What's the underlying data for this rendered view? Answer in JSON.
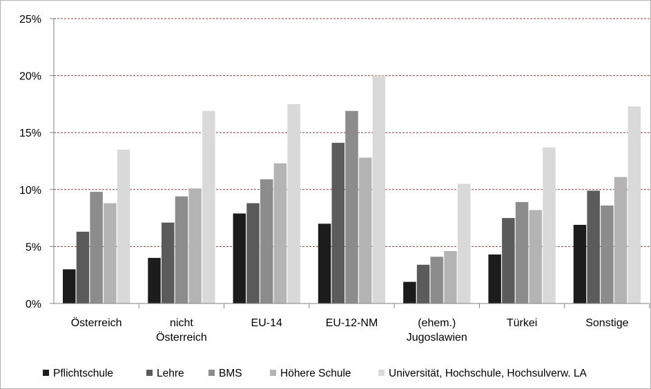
{
  "chart_data": {
    "type": "bar",
    "title": "",
    "xlabel": "",
    "ylabel": "",
    "ylim": [
      0,
      25
    ],
    "y_tick_format": "percent",
    "y_ticks": [
      "0%",
      "5%",
      "10%",
      "15%",
      "20%",
      "25%"
    ],
    "grid": "horizontal dashed",
    "legend_position": "bottom",
    "categories": [
      "Österreich",
      "nicht\nÖsterreich",
      "EU-14",
      "EU-12-NM",
      "(ehem.)\nJugoslawien",
      "Türkei",
      "Sonstige"
    ],
    "series": [
      {
        "name": "Pflichtschule",
        "color": "#1c1c1c",
        "values": [
          3.0,
          4.0,
          7.9,
          7.0,
          1.9,
          4.3,
          6.9
        ]
      },
      {
        "name": "Lehre",
        "color": "#5b5b5b",
        "values": [
          6.3,
          7.1,
          8.8,
          14.1,
          3.4,
          7.5,
          9.9
        ]
      },
      {
        "name": "BMS",
        "color": "#8c8c8c",
        "values": [
          9.8,
          9.4,
          10.9,
          16.9,
          4.1,
          8.9,
          8.6
        ]
      },
      {
        "name": "Höhere Schule",
        "color": "#b4b4b4",
        "values": [
          8.8,
          10.1,
          12.3,
          12.8,
          4.6,
          8.2,
          11.1
        ]
      },
      {
        "name": "Universität, Hochschule, Hochsulverw. LA",
        "color": "#d9d9d9",
        "values": [
          13.5,
          16.9,
          17.5,
          20.0,
          10.5,
          13.7,
          17.3
        ]
      }
    ]
  }
}
